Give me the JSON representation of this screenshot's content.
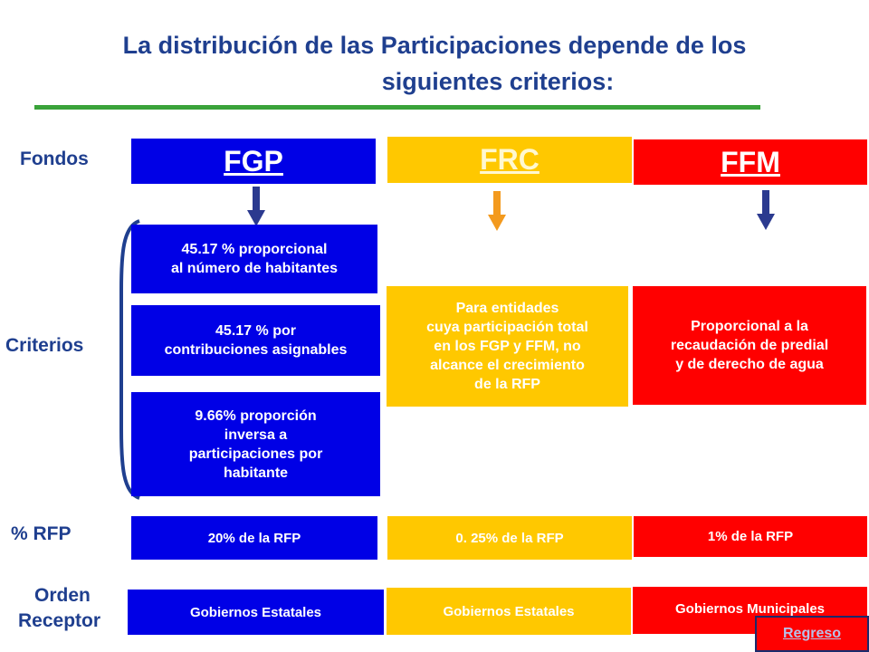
{
  "title": {
    "line1": "La distribución de las Participaciones depende de los",
    "line2": "siguientes criterios:"
  },
  "row_labels": {
    "fondos": "Fondos",
    "criterios": "Criterios",
    "rfp": "% RFP",
    "orden": "Orden",
    "receptor": "Receptor"
  },
  "columns": {
    "fgp": {
      "header": "FGP",
      "color": "#0000e6",
      "criteria": [
        [
          "45.17 % proporcional",
          "al  número de habitantes"
        ],
        [
          "45.17 % por",
          "contribuciones asignables"
        ],
        [
          "9.66% proporción",
          "inversa a",
          "participaciones por",
          "habitante"
        ]
      ],
      "rfp": "20%  de la RFP",
      "receptor": "Gobiernos  Estatales"
    },
    "frc": {
      "header": "FRC",
      "color": "#ffc800",
      "criteria": [
        [
          "Para entidades",
          "cuya participación total",
          "en los FGP y FFM, no",
          "alcance el crecimiento",
          "de la RFP"
        ]
      ],
      "rfp": "0. 25%  de la RFP",
      "receptor": "Gobiernos  Estatales"
    },
    "ffm": {
      "header": "FFM",
      "color": "#ff0000",
      "criteria": [
        [
          "Proporcional a la",
          "recaudación de predial",
          "y de derecho de agua"
        ]
      ],
      "rfp": "1%  de la RFP",
      "receptor": "Gobiernos  Municipales"
    }
  },
  "arrow_colors": {
    "fgp": "#2b3a8f",
    "frc": "#f39a1e",
    "ffm": "#2b3a8f"
  },
  "return_button": "Regreso"
}
